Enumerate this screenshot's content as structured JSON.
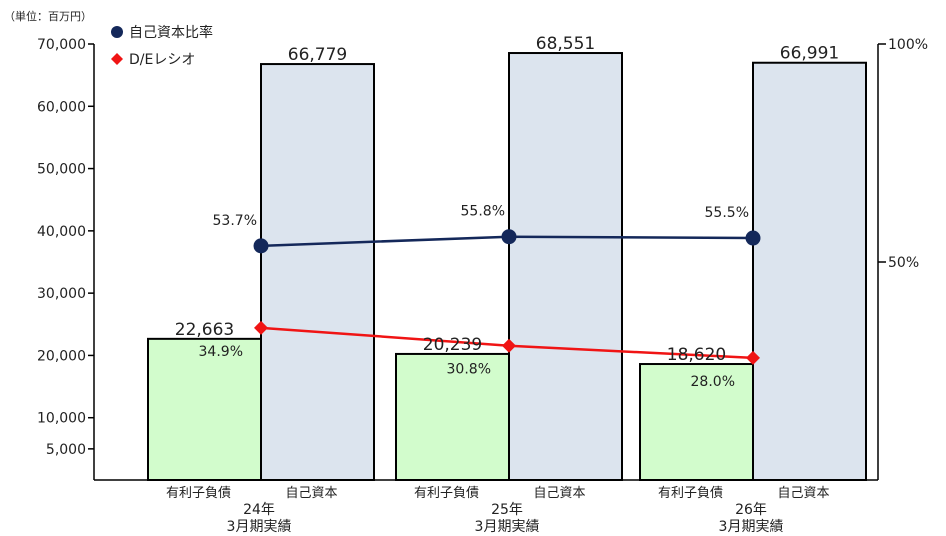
{
  "chart_data": {
    "type": "bar",
    "unit_label": "（単位：百万円）",
    "y_left": {
      "ticks": [
        "5,000",
        "10,000",
        "20,000",
        "30,000",
        "40,000",
        "50,000",
        "60,000",
        "70,000"
      ],
      "tick_values": [
        5000,
        10000,
        20000,
        30000,
        40000,
        50000,
        60000,
        70000
      ],
      "ylim": [
        0,
        70000
      ]
    },
    "y_right": {
      "ticks": [
        "50%",
        "100%"
      ],
      "tick_values": [
        50,
        100
      ],
      "ylim": [
        0,
        100
      ]
    },
    "bar_categories": [
      "有利子負債",
      "自己資本"
    ],
    "groups": [
      {
        "period": [
          "24年",
          "3月期実績"
        ],
        "debt": 22663,
        "debt_label": "22,663",
        "equity": 66779,
        "equity_label": "66,779",
        "ratio": 53.7,
        "ratio_label": "53.7%",
        "de": 34.9,
        "de_label": "34.9%"
      },
      {
        "period": [
          "25年",
          "3月期実績"
        ],
        "debt": 20239,
        "debt_label": "20,239",
        "equity": 68551,
        "equity_label": "68,551",
        "ratio": 55.8,
        "ratio_label": "55.8%",
        "de": 30.8,
        "de_label": "30.8%"
      },
      {
        "period": [
          "26年",
          "3月期実績"
        ],
        "debt": 18620,
        "debt_label": "18,620",
        "equity": 66991,
        "equity_label": "66,991",
        "ratio": 55.5,
        "ratio_label": "55.5%",
        "de": 28.0,
        "de_label": "28.0%"
      }
    ],
    "legend": [
      {
        "name": "自己資本比率",
        "color": "#14285a",
        "marker": "circle"
      },
      {
        "name": "D/Eレシオ",
        "color": "#f01414",
        "marker": "diamond"
      }
    ],
    "colors": {
      "debt_fill": "#d2fccc",
      "equity_fill": "#dce4ee",
      "bar_stroke": "#000000",
      "axis": "#000000"
    }
  }
}
